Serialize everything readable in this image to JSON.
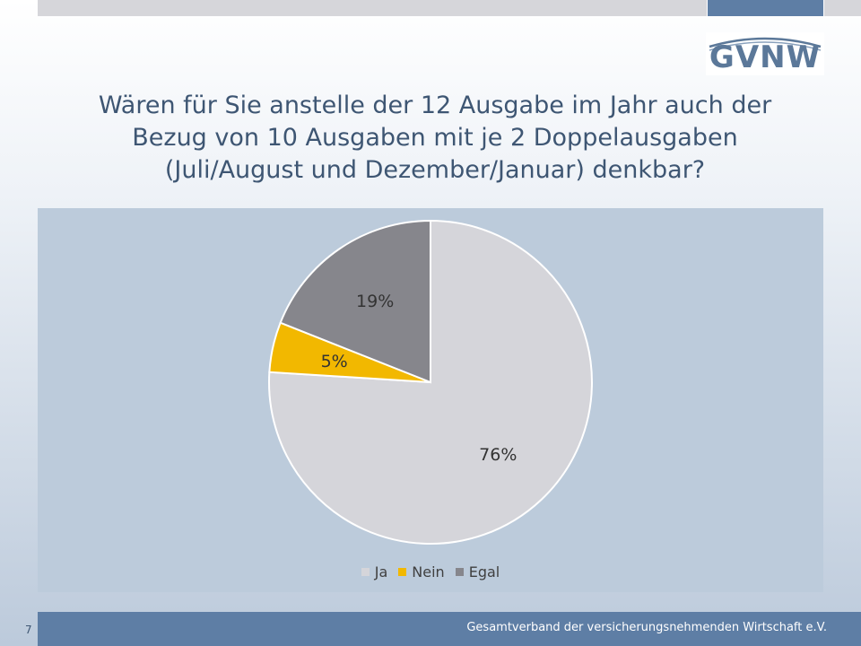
{
  "slide": {
    "title_lines": [
      "Wären für Sie anstelle der 12 Ausgabe im Jahr auch der",
      "Bezug von 10 Ausgaben mit je 2 Doppelausgaben",
      "(Juli/August und Dezember/Januar) denkbar?"
    ],
    "logo_text": "GVNW",
    "footer_text": "Gesamtverband der versicherungsnehmenden Wirtschaft e.V.",
    "page_number": "7"
  },
  "colors": {
    "accent": "#5e7ea5",
    "title_text": "#3e5673",
    "chart_background": "#bccbdb"
  },
  "chart_data": {
    "type": "pie",
    "title": "",
    "legend_position": "bottom",
    "start_angle_deg": 0,
    "direction": "clockwise",
    "slices": [
      {
        "label": "Ja",
        "value": 76,
        "display": "76%",
        "color": "#d5d5da"
      },
      {
        "label": "Nein",
        "value": 5,
        "display": "5%",
        "color": "#f2b800"
      },
      {
        "label": "Egal",
        "value": 19,
        "display": "19%",
        "color": "#86868c"
      }
    ]
  }
}
